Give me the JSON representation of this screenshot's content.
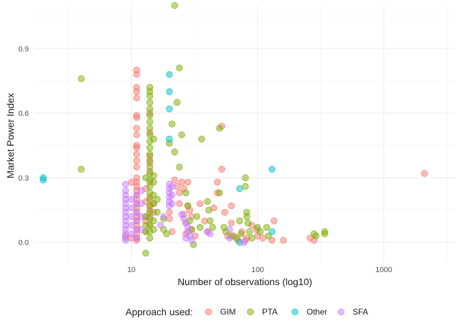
{
  "chart_data": {
    "type": "scatter",
    "xlabel": "Number of observations (log10)",
    "ylabel": "Market Power Index",
    "x_scale": "log10",
    "xlim": [
      1.7,
      3700
    ],
    "ylim": [
      -0.09,
      1.1
    ],
    "x_ticks": [
      10,
      100,
      1000
    ],
    "x_tick_labels": [
      "10",
      "100",
      "1000"
    ],
    "y_ticks": [
      0.0,
      0.3,
      0.6,
      0.9
    ],
    "y_tick_labels": [
      "0.0",
      "0.3",
      "0.6",
      "0.9"
    ],
    "grid": true,
    "legend": {
      "title": "Approach used:",
      "position": "bottom"
    },
    "series": [
      {
        "name": "GIM",
        "color": "#F8766D",
        "points": [
          [
            11,
            0.8
          ],
          [
            11,
            0.78
          ],
          [
            11,
            0.72
          ],
          [
            11,
            0.7
          ],
          [
            11,
            0.67
          ],
          [
            11,
            0.59
          ],
          [
            11,
            0.58
          ],
          [
            11,
            0.53
          ],
          [
            11,
            0.5
          ],
          [
            11,
            0.45
          ],
          [
            11,
            0.44
          ],
          [
            11,
            0.41
          ],
          [
            11,
            0.38
          ],
          [
            11,
            0.35
          ],
          [
            11,
            0.3
          ],
          [
            11,
            0.28
          ],
          [
            11,
            0.26
          ],
          [
            11,
            0.24
          ],
          [
            11,
            0.22
          ],
          [
            11,
            0.2
          ],
          [
            11,
            0.18
          ],
          [
            11,
            0.16
          ],
          [
            11,
            0.14
          ],
          [
            11,
            0.12
          ],
          [
            11,
            0.1
          ],
          [
            11,
            0.08
          ],
          [
            11,
            0.06
          ],
          [
            11,
            0.04
          ],
          [
            11,
            0.02
          ],
          [
            11,
            0.01
          ],
          [
            10,
            0.28
          ],
          [
            10,
            0.02
          ],
          [
            9,
            0.03
          ],
          [
            13,
            0.25
          ],
          [
            13,
            0.19
          ],
          [
            13,
            0.12
          ],
          [
            13,
            0.1
          ],
          [
            13,
            0.05
          ],
          [
            14,
            0.6
          ],
          [
            14,
            0.51
          ],
          [
            14,
            0.4
          ],
          [
            14,
            0.37
          ],
          [
            14,
            0.33
          ],
          [
            14,
            0.28
          ],
          [
            14,
            0.21
          ],
          [
            14,
            0.17
          ],
          [
            14,
            0.15
          ],
          [
            14,
            0.12
          ],
          [
            14,
            0.08
          ],
          [
            15,
            0.18
          ],
          [
            15,
            0.14
          ],
          [
            20,
            0.14
          ],
          [
            20,
            0.11
          ],
          [
            21,
            0.05
          ],
          [
            22,
            0.29
          ],
          [
            23,
            0.26
          ],
          [
            24,
            0.23
          ],
          [
            24,
            0.18
          ],
          [
            25,
            0.28
          ],
          [
            26,
            0.25
          ],
          [
            26,
            0.13
          ],
          [
            27,
            0.09
          ],
          [
            27,
            0.04
          ],
          [
            28,
            0.28
          ],
          [
            28,
            0.17
          ],
          [
            29,
            0.15
          ],
          [
            30,
            0.12
          ],
          [
            30,
            0.06
          ],
          [
            32,
            0.03
          ],
          [
            35,
            0.18
          ],
          [
            38,
            0.1
          ],
          [
            40,
            0.05
          ],
          [
            45,
            0.16
          ],
          [
            48,
            0.28
          ],
          [
            48,
            0.23
          ],
          [
            52,
            0.54
          ],
          [
            52,
            0.34
          ],
          [
            55,
            0.14
          ],
          [
            58,
            0.03
          ],
          [
            62,
            0.17
          ],
          [
            62,
            0.09
          ],
          [
            65,
            0.03
          ],
          [
            70,
            0.01
          ],
          [
            75,
            0.05
          ],
          [
            80,
            0.01
          ],
          [
            82,
            0.02
          ],
          [
            90,
            0.08
          ],
          [
            98,
            0.06
          ],
          [
            100,
            0.03
          ],
          [
            110,
            0.02
          ],
          [
            130,
            0.01
          ],
          [
            135,
            0.1
          ],
          [
            160,
            0.01
          ],
          [
            260,
            0.02
          ],
          [
            280,
            0.01
          ],
          [
            2100,
            0.32
          ]
        ]
      },
      {
        "name": "PTA",
        "color": "#7CAE00",
        "points": [
          [
            4,
            0.76
          ],
          [
            4,
            0.34
          ],
          [
            20,
            0.46
          ],
          [
            22,
            1.1
          ],
          [
            24,
            0.81
          ],
          [
            23,
            0.65
          ],
          [
            21,
            0.55
          ],
          [
            25,
            0.5
          ],
          [
            22,
            0.42
          ],
          [
            24,
            0.35
          ],
          [
            14,
            0.72
          ],
          [
            14,
            0.7
          ],
          [
            14,
            0.68
          ],
          [
            14,
            0.65
          ],
          [
            14,
            0.62
          ],
          [
            14,
            0.59
          ],
          [
            14,
            0.56
          ],
          [
            14,
            0.53
          ],
          [
            14,
            0.5
          ],
          [
            14,
            0.47
          ],
          [
            14,
            0.44
          ],
          [
            14,
            0.41
          ],
          [
            14,
            0.38
          ],
          [
            14,
            0.35
          ],
          [
            14,
            0.32
          ],
          [
            14,
            0.29
          ],
          [
            14,
            0.26
          ],
          [
            14,
            0.23
          ],
          [
            14,
            0.2
          ],
          [
            14,
            0.17
          ],
          [
            14,
            0.14
          ],
          [
            14,
            0.11
          ],
          [
            14,
            0.08
          ],
          [
            14,
            0.05
          ],
          [
            14,
            0.02
          ],
          [
            15,
            0.48
          ],
          [
            15,
            0.31
          ],
          [
            15,
            0.28
          ],
          [
            15,
            0.22
          ],
          [
            15,
            0.18
          ],
          [
            15,
            0.1
          ],
          [
            15,
            0.06
          ],
          [
            13,
            0.3
          ],
          [
            13,
            0.12
          ],
          [
            13,
            0.08
          ],
          [
            13,
            0.05
          ],
          [
            13,
            -0.05
          ],
          [
            16,
            0.2
          ],
          [
            16,
            0.14
          ],
          [
            18,
            0.11
          ],
          [
            18,
            0.06
          ],
          [
            19,
            0.04
          ],
          [
            27,
            0.23
          ],
          [
            28,
            0.17
          ],
          [
            29,
            0.1
          ],
          [
            30,
            0.06
          ],
          [
            31,
            -0.01
          ],
          [
            33,
            0.12
          ],
          [
            35,
            0.07
          ],
          [
            36,
            0.48
          ],
          [
            40,
            0.19
          ],
          [
            41,
            0.15
          ],
          [
            42,
            0.1
          ],
          [
            44,
            0.07
          ],
          [
            50,
            0.53
          ],
          [
            50,
            0.23
          ],
          [
            54,
            0.07
          ],
          [
            56,
            0.05
          ],
          [
            62,
            0.03
          ],
          [
            68,
            0.02
          ],
          [
            72,
            0.1
          ],
          [
            74,
            0.04
          ],
          [
            80,
            0.3
          ],
          [
            80,
            0.26
          ],
          [
            82,
            0.14
          ],
          [
            82,
            0.12
          ],
          [
            84,
            0.09
          ],
          [
            86,
            0.05
          ],
          [
            90,
            0.02
          ],
          [
            100,
            0.07
          ],
          [
            105,
            0.05
          ],
          [
            118,
            0.07
          ],
          [
            122,
            0.03
          ],
          [
            280,
            0.04
          ],
          [
            290,
            0.03
          ],
          [
            340,
            0.05
          ],
          [
            340,
            0.04
          ]
        ]
      },
      {
        "name": "Other",
        "color": "#00BFC4",
        "points": [
          [
            2,
            0.3
          ],
          [
            2,
            0.29
          ],
          [
            20,
            0.78
          ],
          [
            20,
            0.7
          ],
          [
            20,
            0.62
          ],
          [
            20,
            0.48
          ],
          [
            72,
            0.25
          ],
          [
            72,
            0.0
          ],
          [
            130,
            0.34
          ],
          [
            130,
            0.05
          ]
        ]
      },
      {
        "name": "SFA",
        "color": "#C77CFF",
        "points": [
          [
            9,
            0.27
          ],
          [
            9,
            0.24
          ],
          [
            9,
            0.22
          ],
          [
            9,
            0.2
          ],
          [
            9,
            0.18
          ],
          [
            9,
            0.16
          ],
          [
            9,
            0.14
          ],
          [
            9,
            0.12
          ],
          [
            9,
            0.1
          ],
          [
            9,
            0.08
          ],
          [
            9,
            0.06
          ],
          [
            9,
            0.04
          ],
          [
            9,
            0.02
          ],
          [
            9,
            0.01
          ],
          [
            10,
            0.2
          ],
          [
            10,
            0.16
          ],
          [
            10,
            0.12
          ],
          [
            10,
            0.08
          ],
          [
            10,
            0.04
          ],
          [
            11,
            0.22
          ],
          [
            11,
            0.18
          ],
          [
            11,
            0.14
          ],
          [
            11,
            0.1
          ],
          [
            11,
            0.06
          ],
          [
            11,
            0.02
          ],
          [
            12,
            0.24
          ],
          [
            12,
            0.18
          ],
          [
            12,
            0.12
          ],
          [
            12,
            0.06
          ],
          [
            20,
            0.27
          ],
          [
            20,
            0.25
          ],
          [
            20,
            0.23
          ],
          [
            20,
            0.21
          ],
          [
            20,
            0.19
          ],
          [
            20,
            0.17
          ],
          [
            21,
            0.26
          ],
          [
            21,
            0.22
          ],
          [
            21,
            0.18
          ],
          [
            17,
            0.08
          ],
          [
            18,
            0.12
          ],
          [
            25,
            0.13
          ],
          [
            26,
            0.11
          ],
          [
            27,
            0.09
          ],
          [
            28,
            0.07
          ],
          [
            28,
            0.05
          ],
          [
            29,
            0.03
          ],
          [
            30,
            0.01
          ],
          [
            27,
            0.02
          ],
          [
            40,
            0.05
          ],
          [
            42,
            0.04
          ],
          [
            60,
            0.06
          ],
          [
            60,
            0.02
          ],
          [
            78,
            0.0
          ]
        ]
      }
    ]
  }
}
